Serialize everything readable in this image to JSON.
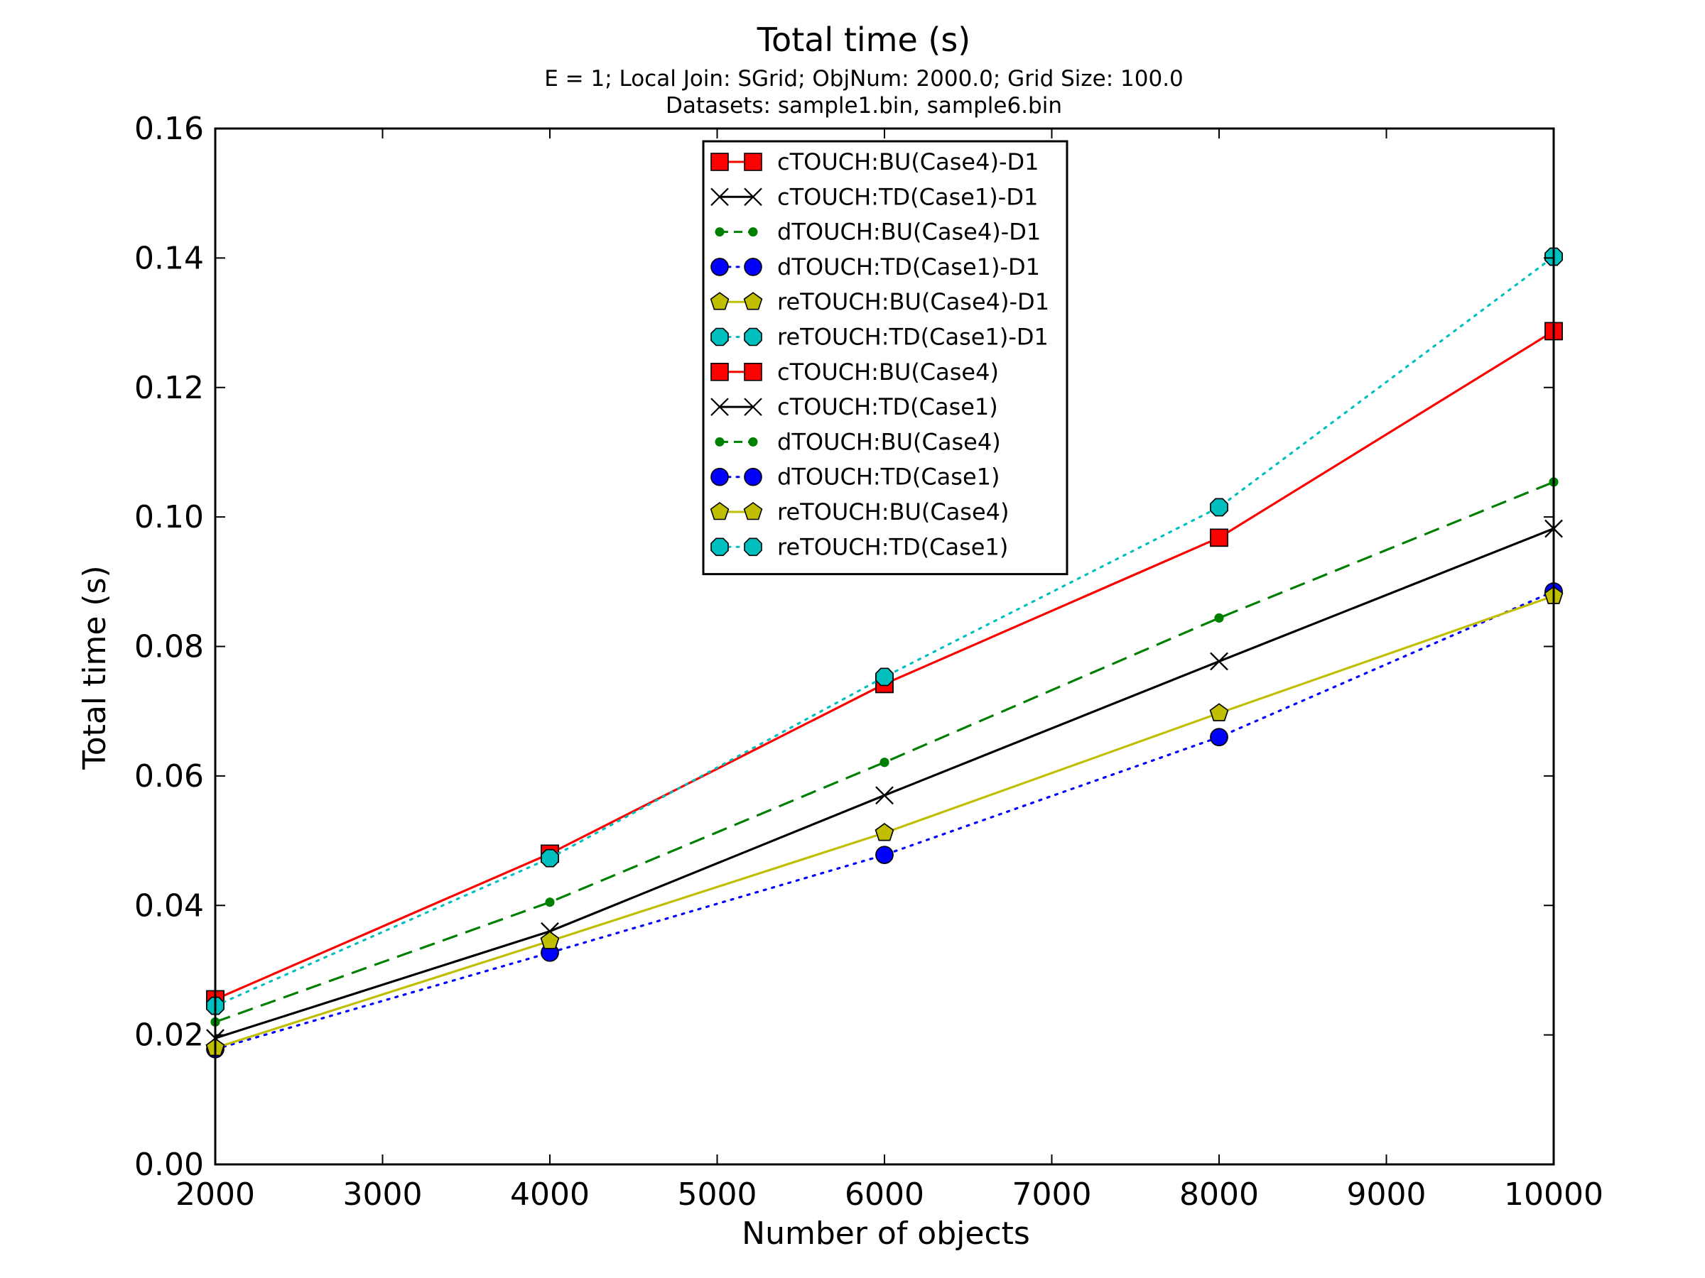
{
  "chart_data": {
    "type": "line",
    "title": "Total time (s)",
    "subtitle_lines": [
      "E = 1; Local Join: SGrid; ObjNum: 2000.0; Grid Size: 100.0",
      "Datasets: sample1.bin, sample6.bin"
    ],
    "xlabel": "Number of objects",
    "ylabel": "Total time (s)",
    "xlim": [
      2000,
      10000
    ],
    "ylim": [
      0,
      0.16
    ],
    "xticks": [
      2000,
      3000,
      4000,
      5000,
      6000,
      7000,
      8000,
      9000,
      10000
    ],
    "xtick_labels": [
      "2000",
      "3000",
      "4000",
      "5000",
      "6000",
      "7000",
      "8000",
      "9000",
      "10000"
    ],
    "yticks": [
      0,
      0.02,
      0.04,
      0.06,
      0.08,
      0.1,
      0.12,
      0.14,
      0.16
    ],
    "ytick_labels": [
      "0.00",
      "0.02",
      "0.04",
      "0.06",
      "0.08",
      "0.10",
      "0.12",
      "0.14",
      "0.16"
    ],
    "grid": false,
    "legend_position": "top-center",
    "x": [
      2000,
      4000,
      6000,
      8000,
      10000
    ],
    "series": [
      {
        "name": "cTOUCH:BU(Case4)-D1",
        "values": [
          0.0255,
          0.048,
          0.0742,
          0.0968,
          0.1287
        ],
        "color": "#ff0000",
        "dash": "solid",
        "marker": "square"
      },
      {
        "name": "cTOUCH:TD(Case1)-D1",
        "values": [
          0.0195,
          0.036,
          0.057,
          0.0777,
          0.0982
        ],
        "color": "#000000",
        "dash": "solid",
        "marker": "x"
      },
      {
        "name": "dTOUCH:BU(Case4)-D1",
        "values": [
          0.022,
          0.0405,
          0.0621,
          0.0844,
          0.1054
        ],
        "color": "#008000",
        "dash": "dashed",
        "marker": "point"
      },
      {
        "name": "dTOUCH:TD(Case1)-D1",
        "values": [
          0.0178,
          0.0327,
          0.0478,
          0.066,
          0.0885
        ],
        "color": "#0000ff",
        "dash": "dotted",
        "marker": "circle"
      },
      {
        "name": "reTOUCH:BU(Case4)-D1",
        "values": [
          0.018,
          0.0345,
          0.0512,
          0.0697,
          0.0878
        ],
        "color": "#bfbf00",
        "dash": "solid",
        "marker": "pentagon"
      },
      {
        "name": "reTOUCH:TD(Case1)-D1",
        "values": [
          0.0245,
          0.0473,
          0.0753,
          0.1015,
          0.1402
        ],
        "color": "#00bfbf",
        "dash": "dotted",
        "marker": "octagon"
      },
      {
        "name": "cTOUCH:BU(Case4)",
        "values": [
          0.0255,
          0.048,
          0.0742,
          0.0968,
          0.1287
        ],
        "color": "#ff0000",
        "dash": "solid",
        "marker": "square"
      },
      {
        "name": "cTOUCH:TD(Case1)",
        "values": [
          0.0195,
          0.036,
          0.057,
          0.0777,
          0.0982
        ],
        "color": "#000000",
        "dash": "solid",
        "marker": "x"
      },
      {
        "name": "dTOUCH:BU(Case4)",
        "values": [
          0.022,
          0.0405,
          0.0621,
          0.0844,
          0.1054
        ],
        "color": "#008000",
        "dash": "dashed",
        "marker": "point"
      },
      {
        "name": "dTOUCH:TD(Case1)",
        "values": [
          0.0178,
          0.0327,
          0.0478,
          0.066,
          0.0885
        ],
        "color": "#0000ff",
        "dash": "dotted",
        "marker": "circle"
      },
      {
        "name": "reTOUCH:BU(Case4)",
        "values": [
          0.018,
          0.0345,
          0.0512,
          0.0697,
          0.0878
        ],
        "color": "#bfbf00",
        "dash": "solid",
        "marker": "pentagon"
      },
      {
        "name": "reTOUCH:TD(Case1)",
        "values": [
          0.0245,
          0.0473,
          0.0753,
          0.1015,
          0.1402
        ],
        "color": "#00bfbf",
        "dash": "dotted",
        "marker": "octagon"
      }
    ]
  }
}
